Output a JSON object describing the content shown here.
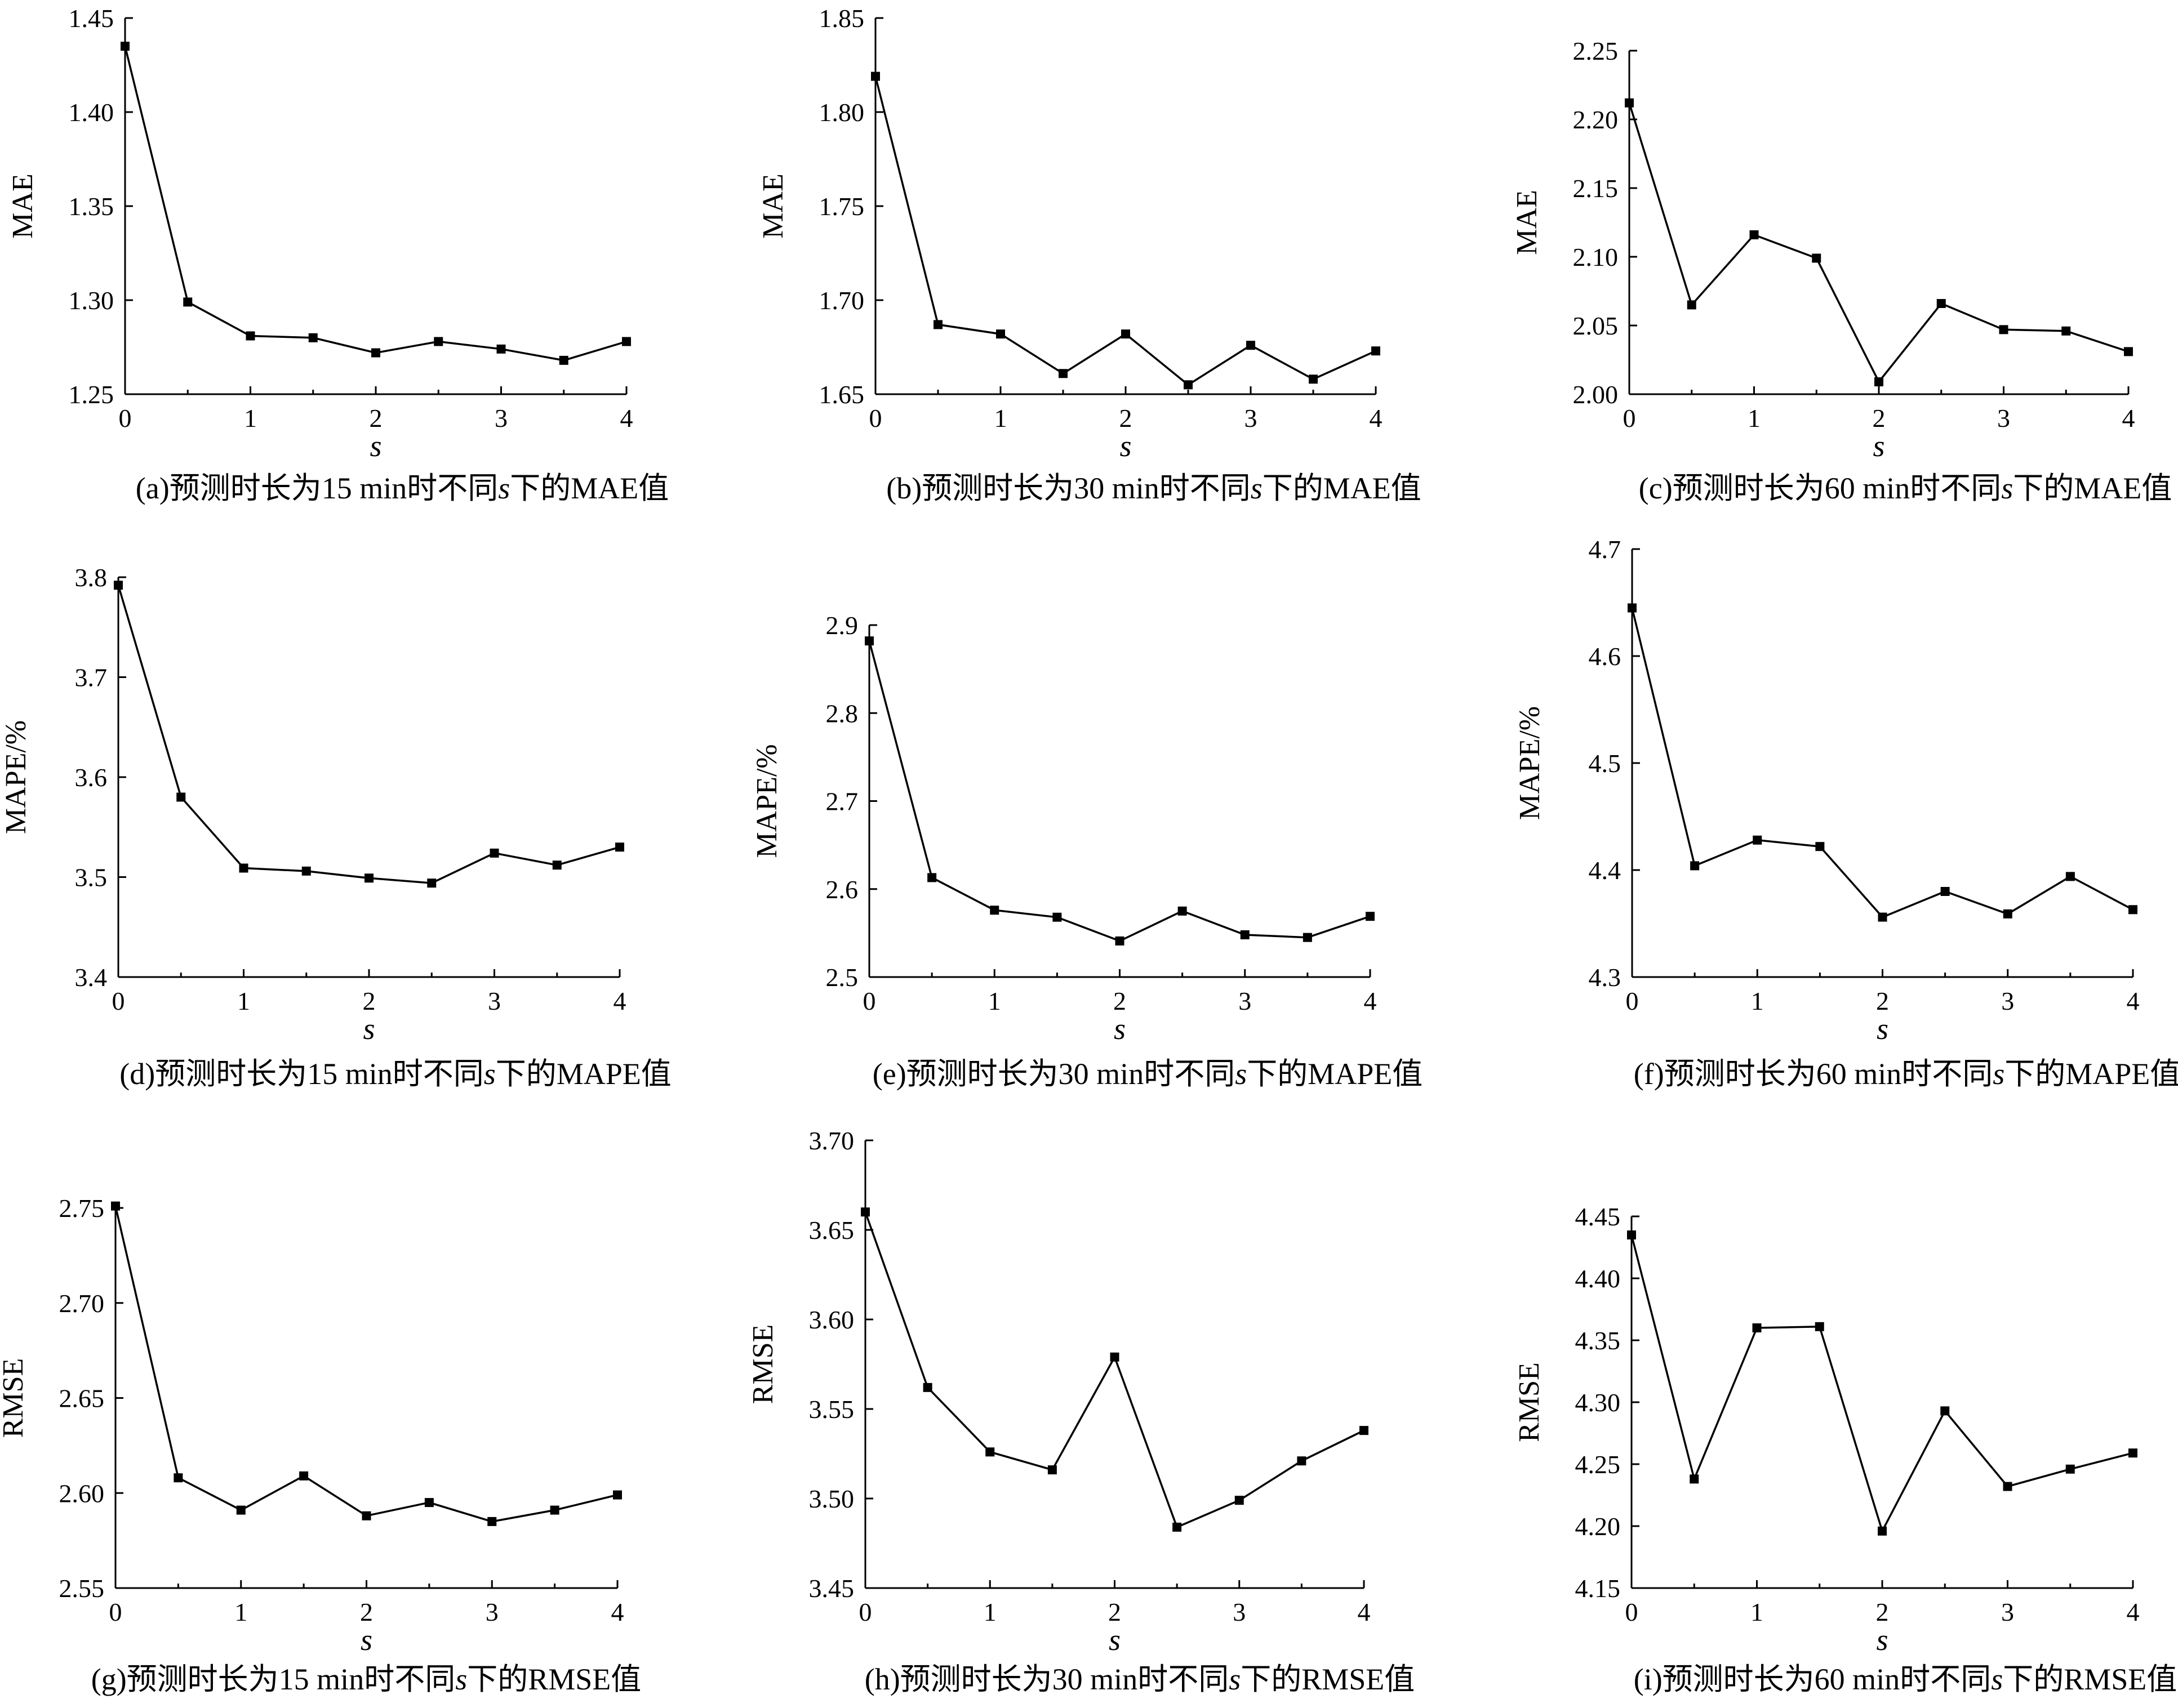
{
  "chart_data": [
    {
      "id": "a",
      "type": "line",
      "x": [
        0,
        0.5,
        1,
        1.5,
        2,
        2.5,
        3,
        3.5,
        4
      ],
      "series": [
        {
          "values": [
            1.435,
            1.299,
            1.281,
            1.28,
            1.272,
            1.278,
            1.274,
            1.268,
            1.278
          ]
        }
      ],
      "ylabel": "MAE",
      "xlabel": "s",
      "ylim": [
        1.25,
        1.45
      ],
      "yticks": [
        "1.25",
        "1.30",
        "1.35",
        "1.40",
        "1.45"
      ],
      "xlim": [
        0,
        4
      ],
      "xticks": [
        "0",
        "1",
        "2",
        "3",
        "4"
      ],
      "caption": {
        "pre": "(a)预测时长为15 min时不同",
        "var": "s",
        "post": "下的MAE值"
      },
      "grid": false
    },
    {
      "id": "b",
      "type": "line",
      "x": [
        0,
        0.5,
        1,
        1.5,
        2,
        2.5,
        3,
        3.5,
        4
      ],
      "series": [
        {
          "values": [
            1.819,
            1.687,
            1.682,
            1.661,
            1.682,
            1.655,
            1.676,
            1.658,
            1.673
          ]
        }
      ],
      "ylabel": "MAE",
      "xlabel": "s",
      "ylim": [
        1.65,
        1.85
      ],
      "yticks": [
        "1.65",
        "1.70",
        "1.75",
        "1.80",
        "1.85"
      ],
      "xlim": [
        0,
        4
      ],
      "xticks": [
        "0",
        "1",
        "2",
        "3",
        "4"
      ],
      "caption": {
        "pre": "(b)预测时长为30 min时不同",
        "var": "s",
        "post": "下的MAE值"
      },
      "grid": false
    },
    {
      "id": "c",
      "type": "line",
      "x": [
        0,
        0.5,
        1,
        1.5,
        2,
        2.5,
        3,
        3.5,
        4
      ],
      "series": [
        {
          "values": [
            2.212,
            2.065,
            2.116,
            2.099,
            2.009,
            2.066,
            2.047,
            2.046,
            2.031
          ]
        }
      ],
      "ylabel": "MAE",
      "xlabel": "s",
      "ylim": [
        2.0,
        2.25
      ],
      "yticks": [
        "2.00",
        "2.05",
        "2.10",
        "2.15",
        "2.20",
        "2.25"
      ],
      "xlim": [
        0,
        4
      ],
      "xticks": [
        "0",
        "1",
        "2",
        "3",
        "4"
      ],
      "caption": {
        "pre": "(c)预测时长为60 min时不同",
        "var": "s",
        "post": "下的MAE值"
      },
      "grid": false
    },
    {
      "id": "d",
      "type": "line",
      "x": [
        0,
        0.5,
        1,
        1.5,
        2,
        2.5,
        3,
        3.5,
        4
      ],
      "series": [
        {
          "values": [
            3.792,
            3.58,
            3.509,
            3.506,
            3.499,
            3.494,
            3.524,
            3.512,
            3.53
          ]
        }
      ],
      "ylabel": "MAPE/%",
      "xlabel": "s",
      "ylim": [
        3.4,
        3.8
      ],
      "yticks": [
        "3.4",
        "3.5",
        "3.6",
        "3.7",
        "3.8"
      ],
      "xlim": [
        0,
        4
      ],
      "xticks": [
        "0",
        "1",
        "2",
        "3",
        "4"
      ],
      "caption": {
        "pre": "(d)预测时长为15 min时不同",
        "var": "s",
        "post": "下的MAPE值"
      },
      "grid": false
    },
    {
      "id": "e",
      "type": "line",
      "x": [
        0,
        0.5,
        1,
        1.5,
        2,
        2.5,
        3,
        3.5,
        4
      ],
      "series": [
        {
          "values": [
            2.882,
            2.613,
            2.576,
            2.568,
            2.541,
            2.575,
            2.548,
            2.545,
            2.569
          ]
        }
      ],
      "ylabel": "MAPE/%",
      "xlabel": "s",
      "ylim": [
        2.5,
        2.9
      ],
      "yticks": [
        "2.5",
        "2.6",
        "2.7",
        "2.8",
        "2.9"
      ],
      "xlim": [
        0,
        4
      ],
      "xticks": [
        "0",
        "1",
        "2",
        "3",
        "4"
      ],
      "caption": {
        "pre": "(e)预测时长为30 min时不同",
        "var": "s",
        "post": "下的MAPE值"
      },
      "grid": false
    },
    {
      "id": "f",
      "type": "line",
      "x": [
        0,
        0.5,
        1,
        1.5,
        2,
        2.5,
        3,
        3.5,
        4
      ],
      "series": [
        {
          "values": [
            4.645,
            4.404,
            4.428,
            4.422,
            4.356,
            4.38,
            4.359,
            4.394,
            4.363
          ]
        }
      ],
      "ylabel": "MAPE/%",
      "xlabel": "s",
      "ylim": [
        4.3,
        4.7
      ],
      "yticks": [
        "4.3",
        "4.4",
        "4.5",
        "4.6",
        "4.7"
      ],
      "xlim": [
        0,
        4
      ],
      "xticks": [
        "0",
        "1",
        "2",
        "3",
        "4"
      ],
      "caption": {
        "pre": "(f)预测时长为60 min时不同",
        "var": "s",
        "post": "下的MAPE值"
      },
      "grid": false
    },
    {
      "id": "g",
      "type": "line",
      "x": [
        0,
        0.5,
        1,
        1.5,
        2,
        2.5,
        3,
        3.5,
        4
      ],
      "series": [
        {
          "values": [
            2.751,
            2.608,
            2.591,
            2.609,
            2.588,
            2.595,
            2.585,
            2.591,
            2.599
          ]
        }
      ],
      "ylabel": "RMSE",
      "xlabel": "s",
      "ylim": [
        2.55,
        2.75
      ],
      "yticks": [
        "2.55",
        "2.60",
        "2.65",
        "2.70",
        "2.75"
      ],
      "xlim": [
        0,
        4
      ],
      "xticks": [
        "0",
        "1",
        "2",
        "3",
        "4"
      ],
      "caption": {
        "pre": "(g)预测时长为15 min时不同",
        "var": "s",
        "post": "下的RMSE值"
      },
      "grid": false
    },
    {
      "id": "h",
      "type": "line",
      "x": [
        0,
        0.5,
        1,
        1.5,
        2,
        2.5,
        3,
        3.5,
        4
      ],
      "series": [
        {
          "values": [
            3.66,
            3.562,
            3.526,
            3.516,
            3.579,
            3.484,
            3.499,
            3.521,
            3.538
          ]
        }
      ],
      "ylabel": "RMSE",
      "xlabel": "s",
      "ylim": [
        3.45,
        3.7
      ],
      "yticks": [
        "3.45",
        "3.50",
        "3.55",
        "3.60",
        "3.65",
        "3.70"
      ],
      "xlim": [
        0,
        4
      ],
      "xticks": [
        "0",
        "1",
        "2",
        "3",
        "4"
      ],
      "caption": {
        "pre": "(h)预测时长为30 min时不同",
        "var": "s",
        "post": "下的RMSE值"
      },
      "grid": false
    },
    {
      "id": "i",
      "type": "line",
      "x": [
        0,
        0.5,
        1,
        1.5,
        2,
        2.5,
        3,
        3.5,
        4
      ],
      "series": [
        {
          "values": [
            4.435,
            4.238,
            4.36,
            4.361,
            4.196,
            4.293,
            4.232,
            4.246,
            4.259
          ]
        }
      ],
      "ylabel": "RMSE",
      "xlabel": "s",
      "ylim": [
        4.15,
        4.45
      ],
      "yticks": [
        "4.15",
        "4.20",
        "4.25",
        "4.30",
        "4.35",
        "4.40",
        "4.45"
      ],
      "xlim": [
        0,
        4
      ],
      "xticks": [
        "0",
        "1",
        "2",
        "3",
        "4"
      ],
      "caption": {
        "pre": "(i)预测时长为60 min时不同",
        "var": "s",
        "post": "下的RMSE值"
      },
      "grid": false
    }
  ]
}
